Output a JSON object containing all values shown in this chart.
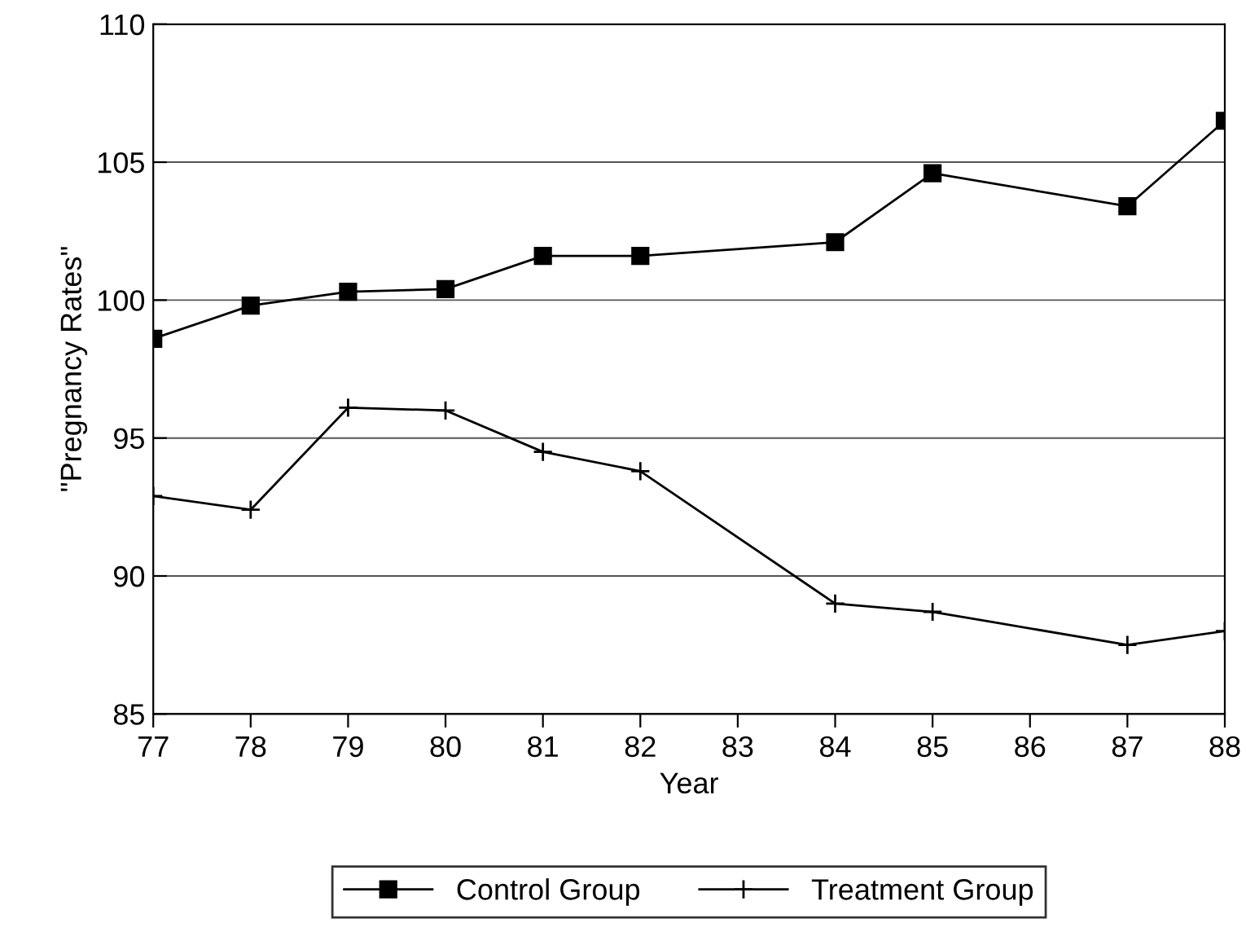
{
  "chart_data": {
    "type": "line",
    "xlabel": "Year",
    "ylabel": "\"Pregnancy Rates\"",
    "x": [
      77,
      78,
      79,
      80,
      81,
      82,
      84,
      85,
      87,
      88
    ],
    "series": [
      {
        "name": "Control Group",
        "color": "#000000",
        "marker": "square",
        "values": [
          98.6,
          99.8,
          100.3,
          100.4,
          101.6,
          101.6,
          102.1,
          104.6,
          103.4,
          106.5
        ]
      },
      {
        "name": "Treatment Group",
        "color": "#000000",
        "marker": "cross",
        "values": [
          92.9,
          92.4,
          96.1,
          96.0,
          94.5,
          93.8,
          89.0,
          88.7,
          87.5,
          88.0
        ]
      }
    ],
    "xlim": [
      77,
      88
    ],
    "xticks": [
      77,
      78,
      79,
      80,
      81,
      82,
      83,
      84,
      85,
      86,
      87,
      88
    ],
    "ylim": [
      85,
      110
    ],
    "yticks": [
      85,
      90,
      95,
      100,
      105,
      110
    ],
    "grid": "y",
    "legend": "bottom",
    "line_style": "solid"
  }
}
